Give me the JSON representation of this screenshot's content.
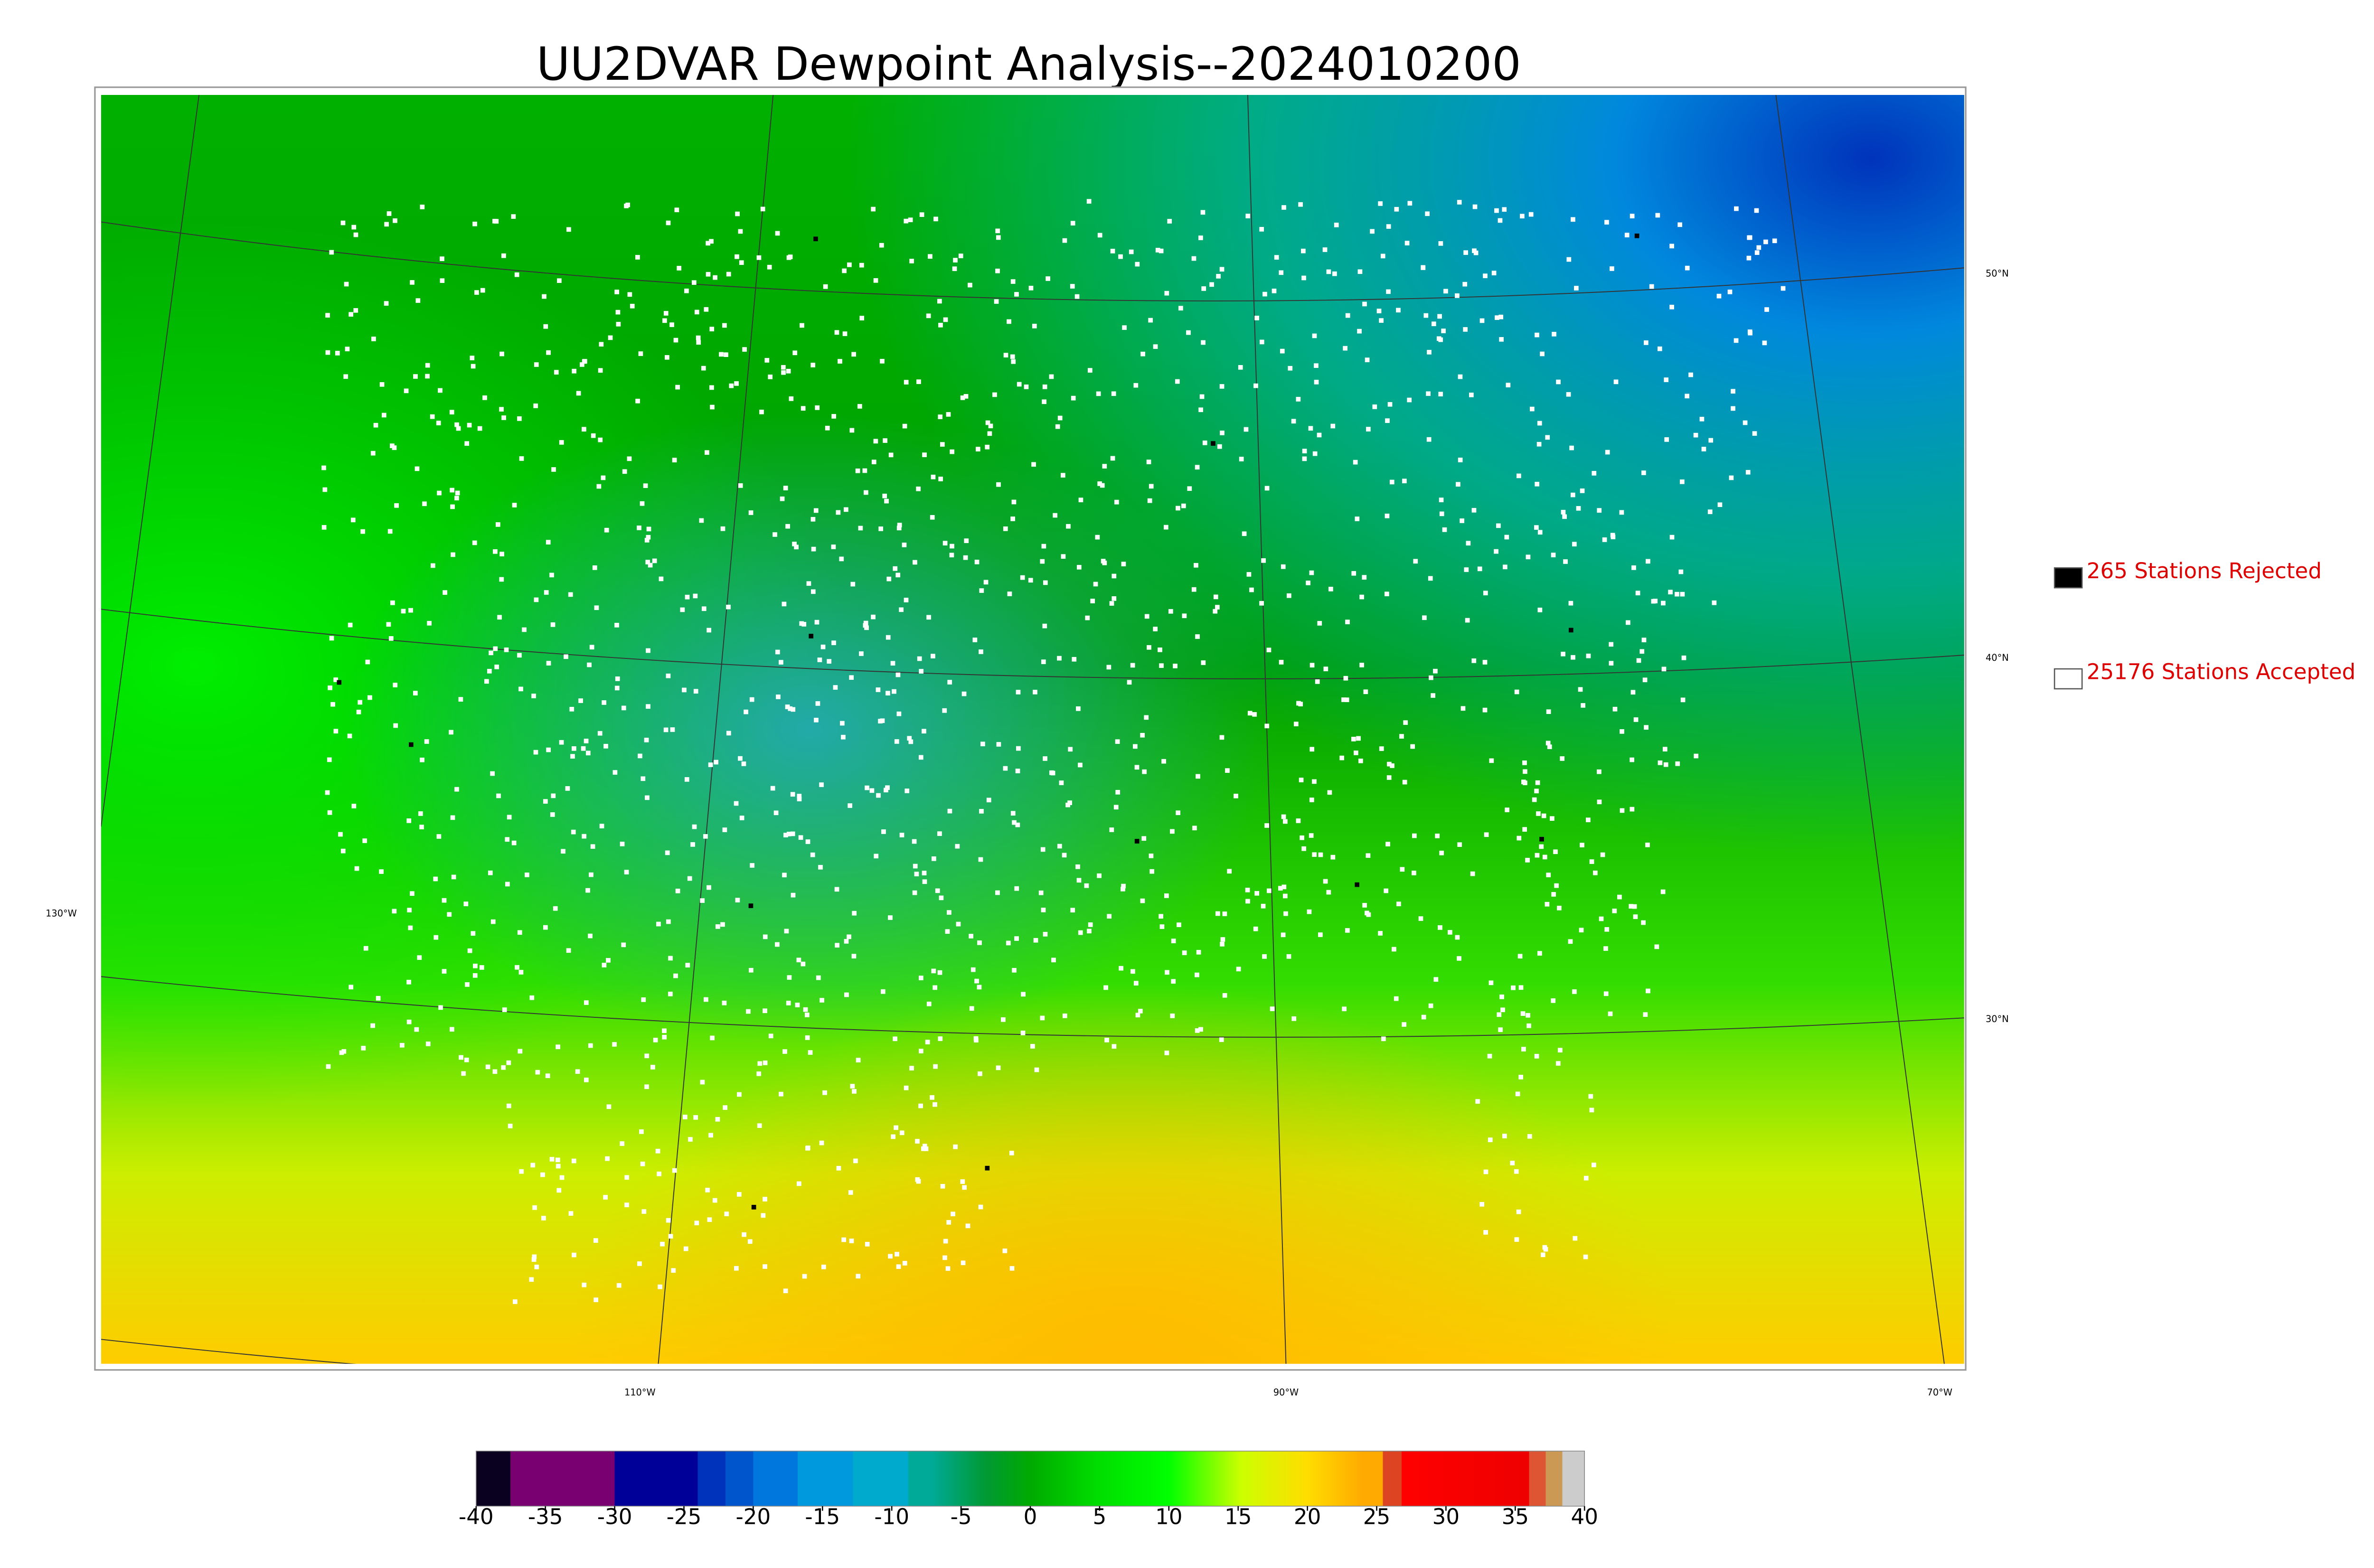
{
  "title": "UU2DVAR Dewpoint Analysis--2024010200",
  "legend": [
    {
      "label": "265 Stations Rejected",
      "color": "#000000"
    },
    {
      "label": "25176 Stations Accepted",
      "color": "#ffffff"
    }
  ],
  "latitude_labels": [
    "50°N",
    "40°N",
    "30°N"
  ],
  "longitude_labels": [
    "130°W",
    "110°W",
    "90°W",
    "70°W"
  ],
  "colorbar": {
    "lim": [
      -40,
      40
    ],
    "ticks": [
      -40,
      -35,
      -30,
      -25,
      -20,
      -15,
      -10,
      -5,
      0,
      5,
      10,
      15,
      20,
      25,
      30,
      35,
      40
    ]
  }
}
